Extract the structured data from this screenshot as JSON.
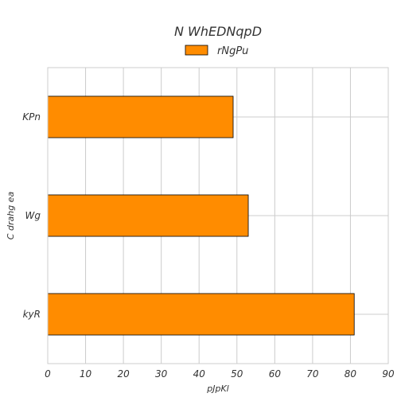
{
  "chart_data": {
    "type": "bar",
    "orientation": "horizontal",
    "title": "N WhEDNqpD",
    "xlabel": "pJpKl",
    "ylabel": "C drahg ea",
    "categories": [
      "KPn",
      "Wg",
      "kyR"
    ],
    "series": [
      {
        "name": "rNgPu",
        "values": [
          49,
          53,
          81
        ]
      }
    ],
    "xlim": [
      0,
      90
    ],
    "xticks": [
      0,
      10,
      20,
      30,
      40,
      50,
      60,
      70,
      80,
      90
    ],
    "grid": true,
    "legend_position": "top-center",
    "bar_color": "#FF8C00",
    "bar_edge_color": "#000000",
    "grid_color": "#cccccc"
  }
}
